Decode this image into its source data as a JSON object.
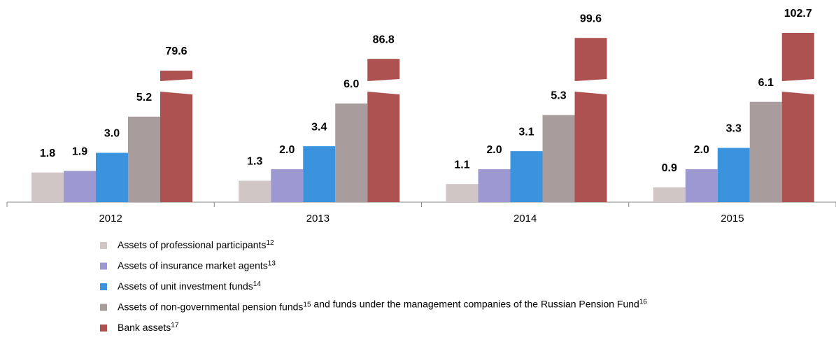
{
  "chart_data": {
    "type": "bar",
    "broken_series": 4,
    "categories": [
      "2012",
      "2013",
      "2014",
      "2015"
    ],
    "series": [
      {
        "name": [
          {
            "text": "Assets of professional participants",
            "sup": "12"
          }
        ],
        "color": "#d0c6c6",
        "values": [
          1.8,
          1.3,
          1.1,
          0.9
        ]
      },
      {
        "name": [
          {
            "text": "Assets of insurance market agents",
            "sup": "13"
          }
        ],
        "color": "#9d98cf",
        "values": [
          1.9,
          2.0,
          2.0,
          2.0
        ]
      },
      {
        "name": [
          {
            "text": "Assets of unit investment funds",
            "sup": "14"
          }
        ],
        "color": "#3a93dc",
        "values": [
          3.0,
          3.4,
          3.1,
          3.3
        ]
      },
      {
        "name": [
          {
            "text": "Assets of non-governmental pension funds",
            "sup": "15"
          },
          {
            "text": " and funds under the management companies of the Russian Pension Fund",
            "sup": "16"
          }
        ],
        "color": "#a89c9c",
        "values": [
          5.2,
          6.0,
          5.3,
          6.1
        ]
      },
      {
        "name": [
          {
            "text": "Bank assets",
            "sup": "17"
          }
        ],
        "color": "#ad5151",
        "values": [
          79.6,
          86.8,
          99.6,
          102.7
        ]
      }
    ],
    "value_labels": [
      [
        "1.8",
        "1.3",
        "1.1",
        "0.9"
      ],
      [
        "1.9",
        "2.0",
        "2.0",
        "2.0"
      ],
      [
        "3.0",
        "3.4",
        "3.1",
        "3.3"
      ],
      [
        "5.2",
        "6.0",
        "5.3",
        "6.1"
      ],
      [
        "79.6",
        "86.8",
        "99.6",
        "102.7"
      ]
    ]
  }
}
